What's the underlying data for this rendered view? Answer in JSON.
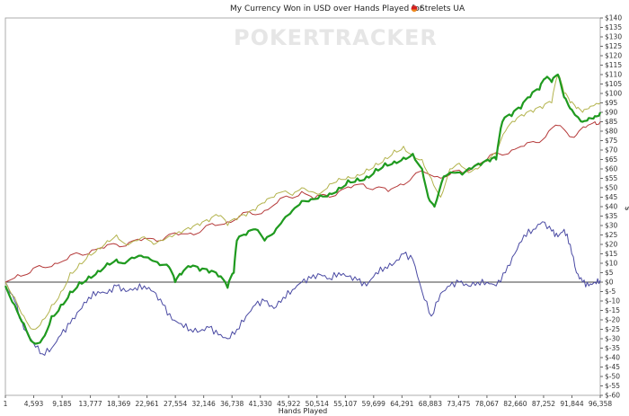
{
  "chart_data": {
    "type": "line",
    "title": "My Currency Won in USD over Hands Played for",
    "player": "Strelets UA",
    "watermark": {
      "left": "POKER",
      "right": "TRACKER"
    },
    "xlabel": "Hands Played",
    "ylabel": "$",
    "xlim": [
      1,
      96358
    ],
    "ylim": [
      -60,
      140
    ],
    "x_ticks": [
      "1",
      "4,593",
      "9,185",
      "13,777",
      "18,369",
      "22,961",
      "27,554",
      "32,146",
      "36,738",
      "41,330",
      "45,922",
      "50,514",
      "55,107",
      "59,699",
      "64,291",
      "68,883",
      "73,475",
      "78,067",
      "82,660",
      "87,252",
      "91,844",
      "96,358"
    ],
    "y_ticks": [
      "$140",
      "$135",
      "$130",
      "$125",
      "$120",
      "$115",
      "$110",
      "$105",
      "$100",
      "$95",
      "$90",
      "$85",
      "$80",
      "$75",
      "$70",
      "$65",
      "$60",
      "$55",
      "$50",
      "$45",
      "$40",
      "$35",
      "$30",
      "$25",
      "$20",
      "$15",
      "$10",
      "$5",
      "$0",
      "$-5",
      "$-10",
      "$-15",
      "$-20",
      "$-25",
      "$-30",
      "$-35",
      "$-40",
      "$-45",
      "$-50",
      "$-55",
      "$-60"
    ],
    "colors": {
      "green": "#1f9a1f",
      "olive": "#b3b34d",
      "red": "#b53a3a",
      "blue": "#4a4aa3",
      "zero": "#000000"
    },
    "series": [
      {
        "key": "green",
        "width": 2.2,
        "x": [
          1,
          1500,
          3000,
          4500,
          6000,
          7500,
          9000,
          10500,
          12000,
          13500,
          15000,
          16500,
          18000,
          19000,
          20500,
          22000,
          23500,
          25000,
          26500,
          27500,
          28500,
          30000,
          31500,
          33000,
          34500,
          36000,
          37000,
          37500,
          39000,
          40500,
          42000,
          43500,
          45000,
          46500,
          48000,
          49500,
          51000,
          52500,
          54000,
          55500,
          57000,
          58500,
          60000,
          61500,
          63000,
          64500,
          66000,
          67500,
          68500,
          69500,
          71000,
          72500,
          74000,
          75500,
          77000,
          78500,
          79500,
          80500,
          82000,
          83500,
          85000,
          86500,
          87500,
          88500,
          89500,
          90500,
          91500,
          92500,
          93500,
          94500,
          95500,
          96358
        ],
        "y": [
          -2,
          -12,
          -22,
          -32,
          -30,
          -18,
          -12,
          -5,
          0,
          3,
          6,
          10,
          12,
          10,
          13,
          14,
          12,
          9,
          8,
          0,
          4,
          8,
          6,
          5,
          3,
          -3,
          5,
          22,
          25,
          28,
          22,
          26,
          33,
          38,
          43,
          44,
          46,
          47,
          50,
          54,
          55,
          56,
          60,
          63,
          64,
          66,
          68,
          60,
          45,
          40,
          56,
          58,
          57,
          60,
          62,
          64,
          65,
          85,
          88,
          92,
          98,
          102,
          108,
          106,
          110,
          98,
          92,
          88,
          85,
          87,
          88,
          90
        ]
      },
      {
        "key": "olive",
        "width": 1,
        "x": [
          1,
          1500,
          3000,
          4500,
          6000,
          7500,
          9000,
          10500,
          12000,
          13500,
          15000,
          16500,
          18000,
          19500,
          21000,
          22500,
          24000,
          25500,
          27000,
          28500,
          30000,
          31500,
          33000,
          34500,
          36000,
          37500,
          39000,
          40500,
          42000,
          43500,
          45000,
          46500,
          48000,
          49500,
          51000,
          52500,
          54000,
          55500,
          57000,
          58500,
          60000,
          61500,
          63000,
          64500,
          66000,
          67500,
          69000,
          70500,
          72000,
          73500,
          75000,
          76500,
          78000,
          79500,
          81000,
          82500,
          84000,
          85500,
          87000,
          88500,
          89500,
          90500,
          91500,
          92500,
          93500,
          94500,
          95500,
          96358
        ],
        "y": [
          0,
          -8,
          -18,
          -25,
          -20,
          -12,
          -5,
          5,
          10,
          15,
          18,
          22,
          25,
          20,
          22,
          24,
          20,
          22,
          24,
          26,
          28,
          30,
          32,
          35,
          30,
          33,
          35,
          38,
          42,
          45,
          48,
          46,
          50,
          48,
          47,
          52,
          55,
          56,
          57,
          60,
          63,
          66,
          70,
          72,
          68,
          65,
          55,
          45,
          60,
          63,
          58,
          60,
          64,
          68,
          80,
          85,
          88,
          90,
          92,
          95,
          110,
          100,
          95,
          92,
          90,
          92,
          94,
          95
        ]
      },
      {
        "key": "red",
        "width": 1,
        "x": [
          1,
          2000,
          4000,
          6000,
          8000,
          10000,
          12000,
          14000,
          16000,
          18000,
          20000,
          22000,
          24000,
          26000,
          28000,
          30000,
          32000,
          34000,
          36000,
          38000,
          40000,
          42000,
          44000,
          46000,
          48000,
          50000,
          52000,
          54000,
          56000,
          58000,
          60000,
          62000,
          64000,
          66000,
          68000,
          70000,
          72000,
          74000,
          76000,
          78000,
          80000,
          82000,
          84000,
          86000,
          88000,
          89500,
          91000,
          92500,
          94000,
          95500,
          96358
        ],
        "y": [
          0,
          4,
          5,
          8,
          10,
          12,
          15,
          17,
          18,
          20,
          21,
          22,
          23,
          24,
          25,
          26,
          28,
          30,
          32,
          35,
          36,
          38,
          42,
          45,
          48,
          44,
          46,
          48,
          50,
          52,
          50,
          48,
          52,
          56,
          58,
          56,
          57,
          58,
          62,
          65,
          68,
          70,
          72,
          74,
          80,
          83,
          79,
          78,
          82,
          85,
          85
        ]
      },
      {
        "key": "blue",
        "width": 1,
        "x": [
          1,
          1500,
          3000,
          4500,
          6000,
          7500,
          9000,
          10500,
          12000,
          13500,
          15000,
          16500,
          18000,
          19500,
          21000,
          22500,
          24000,
          25500,
          27000,
          28500,
          30000,
          31500,
          33000,
          34500,
          36000,
          37500,
          39000,
          40500,
          42000,
          43500,
          45000,
          46500,
          48000,
          49500,
          51000,
          52500,
          54000,
          55500,
          57000,
          58500,
          60000,
          61500,
          63000,
          64500,
          66000,
          67500,
          69000,
          70500,
          72000,
          73500,
          75000,
          76500,
          78000,
          79500,
          81000,
          82500,
          84000,
          85500,
          87000,
          88500,
          89500,
          90500,
          91500,
          92500,
          93500,
          94500,
          95500,
          96358
        ],
        "y": [
          0,
          -10,
          -25,
          -32,
          -38,
          -35,
          -28,
          -22,
          -15,
          -8,
          -5,
          -6,
          -2,
          -5,
          -3,
          -2,
          -5,
          -12,
          -20,
          -22,
          -25,
          -26,
          -24,
          -28,
          -30,
          -25,
          -18,
          -12,
          -10,
          -14,
          -8,
          -4,
          0,
          2,
          4,
          2,
          5,
          3,
          1,
          -2,
          5,
          8,
          10,
          15,
          12,
          -5,
          -18,
          -6,
          -2,
          0,
          -2,
          0,
          0,
          -2,
          5,
          15,
          25,
          28,
          32,
          27,
          24,
          28,
          20,
          5,
          0,
          -2,
          0,
          1
        ]
      }
    ]
  }
}
